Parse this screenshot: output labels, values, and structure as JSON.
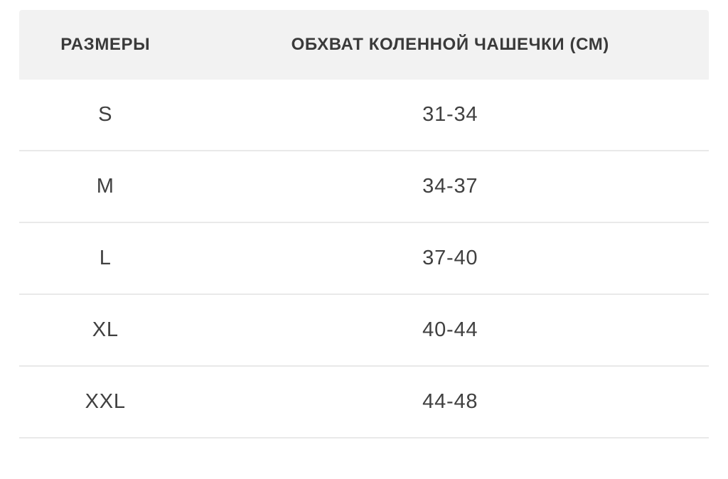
{
  "table": {
    "columns": {
      "sizes_label": "РАЗМЕРЫ",
      "circumference_label": "ОБХВАТ КОЛЕННОЙ ЧАШЕЧКИ (СМ)"
    },
    "rows": [
      {
        "size": "S",
        "value": "31-34"
      },
      {
        "size": "M",
        "value": "34-37"
      },
      {
        "size": "L",
        "value": "37-40"
      },
      {
        "size": "XL",
        "value": "40-44"
      },
      {
        "size": "XXL",
        "value": "44-48"
      }
    ]
  },
  "colors": {
    "header_background": "#f2f2f2",
    "row_divider": "#e9e9e9",
    "header_text": "#3a3a3a",
    "body_text": "#404040",
    "page_background": "#ffffff"
  }
}
